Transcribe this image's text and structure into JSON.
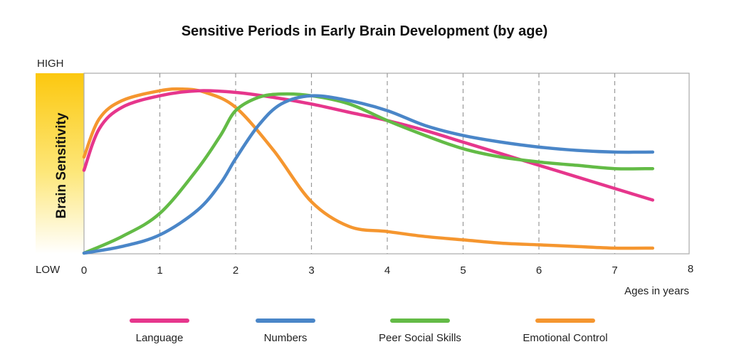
{
  "chart_data": {
    "type": "line",
    "title": "Sensitive Periods in Early Brain Development (by age)",
    "xlabel": "Ages in years",
    "ylabel": "Brain Sensitivity",
    "y_high_label": "HIGH",
    "y_low_label": "LOW",
    "xlim": [
      0,
      8
    ],
    "ylim": [
      0,
      1
    ],
    "x_ticks": [
      0,
      1,
      2,
      3,
      4,
      5,
      6,
      7,
      8
    ],
    "grid": "dashed vertical",
    "legend_position": "bottom",
    "series": [
      {
        "name": "Language",
        "color": "#e6368c",
        "points": [
          [
            0,
            0.5
          ],
          [
            0.2,
            0.75
          ],
          [
            0.5,
            0.88
          ],
          [
            1,
            0.95
          ],
          [
            1.5,
            0.98
          ],
          [
            2,
            0.97
          ],
          [
            2.5,
            0.94
          ],
          [
            3,
            0.9
          ],
          [
            3.5,
            0.85
          ],
          [
            4,
            0.8
          ],
          [
            4.5,
            0.74
          ],
          [
            5,
            0.67
          ],
          [
            5.5,
            0.6
          ],
          [
            6,
            0.53
          ],
          [
            6.5,
            0.46
          ],
          [
            7,
            0.39
          ],
          [
            7.5,
            0.32
          ]
        ]
      },
      {
        "name": "Numbers",
        "color": "#4a86c8",
        "points": [
          [
            0,
            0
          ],
          [
            0.5,
            0.04
          ],
          [
            1,
            0.11
          ],
          [
            1.5,
            0.26
          ],
          [
            1.8,
            0.42
          ],
          [
            2,
            0.57
          ],
          [
            2.3,
            0.77
          ],
          [
            2.6,
            0.9
          ],
          [
            3,
            0.95
          ],
          [
            3.5,
            0.92
          ],
          [
            4,
            0.86
          ],
          [
            4.5,
            0.77
          ],
          [
            5,
            0.71
          ],
          [
            5.5,
            0.67
          ],
          [
            6,
            0.64
          ],
          [
            6.5,
            0.62
          ],
          [
            7,
            0.61
          ],
          [
            7.5,
            0.61
          ]
        ]
      },
      {
        "name": "Peer Social Skills",
        "color": "#63bb46",
        "points": [
          [
            0,
            0
          ],
          [
            0.5,
            0.1
          ],
          [
            1,
            0.24
          ],
          [
            1.5,
            0.51
          ],
          [
            1.8,
            0.71
          ],
          [
            2,
            0.86
          ],
          [
            2.3,
            0.94
          ],
          [
            2.6,
            0.96
          ],
          [
            3,
            0.95
          ],
          [
            3.5,
            0.9
          ],
          [
            4,
            0.8
          ],
          [
            4.5,
            0.71
          ],
          [
            5,
            0.63
          ],
          [
            5.5,
            0.58
          ],
          [
            6,
            0.55
          ],
          [
            6.5,
            0.53
          ],
          [
            7,
            0.51
          ],
          [
            7.5,
            0.51
          ]
        ]
      },
      {
        "name": "Emotional Control",
        "color": "#f5962f",
        "points": [
          [
            0,
            0.58
          ],
          [
            0.2,
            0.81
          ],
          [
            0.5,
            0.92
          ],
          [
            1,
            0.98
          ],
          [
            1.3,
            0.99
          ],
          [
            1.6,
            0.97
          ],
          [
            2,
            0.88
          ],
          [
            2.5,
            0.62
          ],
          [
            3,
            0.31
          ],
          [
            3.5,
            0.16
          ],
          [
            4,
            0.13
          ],
          [
            4.5,
            0.1
          ],
          [
            5,
            0.08
          ],
          [
            5.5,
            0.06
          ],
          [
            6,
            0.05
          ],
          [
            6.5,
            0.04
          ],
          [
            7,
            0.03
          ],
          [
            7.5,
            0.03
          ]
        ]
      }
    ]
  }
}
